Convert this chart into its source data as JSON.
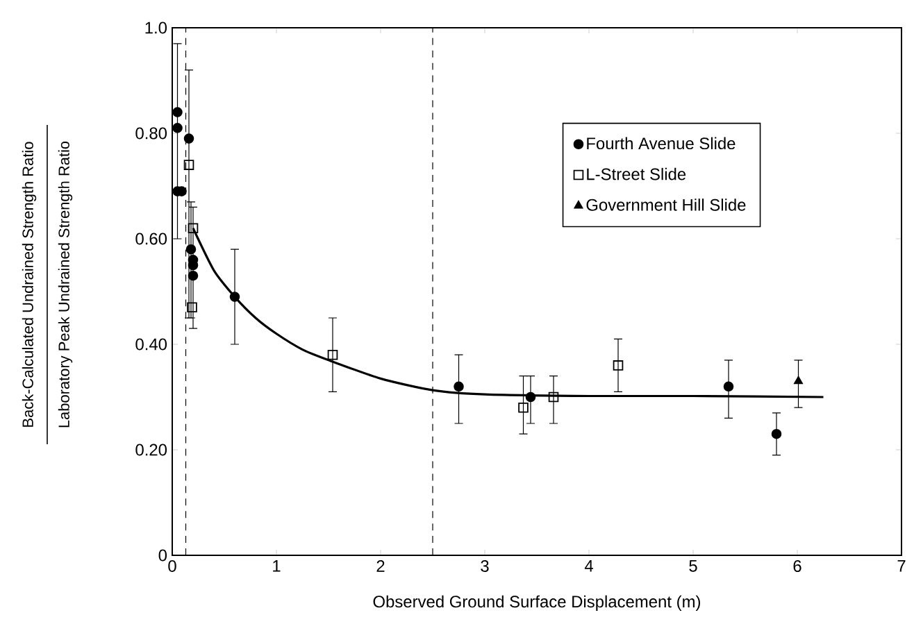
{
  "chart_data": {
    "type": "scatter",
    "xlabel": "Observed Ground Surface Displacement (m)",
    "annotations": [
      "Back-Calculated Undrained Strength Ratio",
      "Laboratory Peak Undrained Strength Ratio"
    ],
    "xlim": [
      0,
      7
    ],
    "ylim": [
      0,
      1.0
    ],
    "xticks": [
      0,
      1,
      2,
      3,
      4,
      5,
      6,
      7
    ],
    "yticks": [
      0,
      {
        "value": 0.2,
        "label": "0.20"
      },
      {
        "value": 0.4,
        "label": "0.40"
      },
      {
        "value": 0.6,
        "label": "0.60"
      },
      {
        "value": 0.8,
        "label": "0.80"
      },
      {
        "value": 1.0,
        "label": "1.0"
      }
    ],
    "legend": "top right",
    "grid": false,
    "ref_lines": [
      {
        "axis": "x",
        "value": 0.13,
        "line_style": "dashed"
      },
      {
        "axis": "x",
        "value": 2.5,
        "line_style": "dashed"
      }
    ],
    "series": [
      {
        "name": "Fourth Avenue Slide",
        "marker": "circle",
        "color": "#000000",
        "x": [
          0.05,
          0.05,
          0.05,
          0.09,
          0.16,
          0.18,
          0.2,
          0.2,
          0.2,
          0.6,
          2.75,
          3.44,
          5.34,
          5.8
        ],
        "values": [
          0.84,
          0.81,
          0.69,
          0.69,
          0.79,
          0.58,
          0.56,
          0.55,
          0.53,
          0.49,
          0.32,
          0.3,
          0.32,
          0.23
        ],
        "errors": [
          [
            0.6,
            0.97
          ],
          null,
          null,
          null,
          null,
          [
            0.45,
            0.67
          ],
          null,
          null,
          null,
          [
            0.4,
            0.58
          ],
          [
            0.25,
            0.38
          ],
          [
            0.25,
            0.34
          ],
          [
            0.26,
            0.37
          ],
          [
            0.19,
            0.27
          ]
        ]
      },
      {
        "name": "L-Street Slide",
        "marker": "square",
        "color": "#000000",
        "x": [
          0.16,
          0.2,
          0.19,
          1.54,
          3.37,
          3.66,
          4.28
        ],
        "values": [
          0.74,
          0.62,
          0.47,
          0.38,
          0.28,
          0.3,
          0.36
        ],
        "errors": [
          [
            0.45,
            0.92
          ],
          [
            0.43,
            0.66
          ],
          null,
          [
            0.31,
            0.45
          ],
          [
            0.23,
            0.34
          ],
          [
            0.25,
            0.34
          ],
          [
            0.31,
            0.41
          ]
        ]
      },
      {
        "name": "Government Hill Slide",
        "marker": "triangle",
        "color": "#000000",
        "x": [
          6.01
        ],
        "values": [
          0.33
        ],
        "errors": [
          [
            0.28,
            0.37
          ]
        ]
      },
      {
        "type": "line",
        "line_style": "solid",
        "color": "#000000",
        "x": [
          0.2,
          0.4,
          0.6,
          0.8,
          1.0,
          1.25,
          1.5,
          2.0,
          2.5,
          3.0,
          4.0,
          5.0,
          6.25
        ],
        "values": [
          0.62,
          0.54,
          0.49,
          0.45,
          0.42,
          0.39,
          0.37,
          0.335,
          0.313,
          0.305,
          0.302,
          0.302,
          0.3
        ]
      }
    ]
  }
}
